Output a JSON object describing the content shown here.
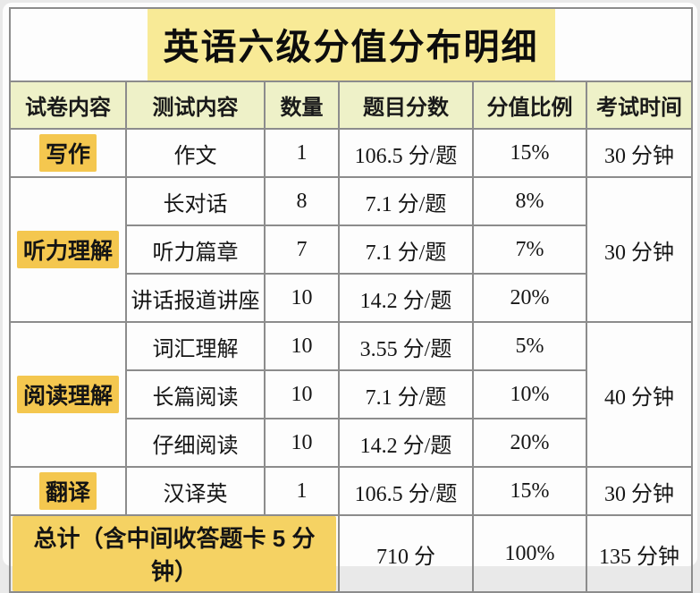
{
  "title": "英语六级分值分布明细",
  "colors": {
    "title_highlight": "#f8ea96",
    "header_bg": "#eef1c8",
    "category_highlight": "#f4c74f",
    "total_highlight": "#f5d263",
    "border": "#8c8c8c",
    "card_bg": "#fdfdfd",
    "outer_bg": "#e9e9e9"
  },
  "table": {
    "headers": [
      "试卷内容",
      "测试内容",
      "数量",
      "题目分数",
      "分值比例",
      "考试时间"
    ],
    "sections": [
      {
        "name": "写作",
        "time": "30 分钟"
      },
      {
        "name": "听力理解",
        "time": "30 分钟"
      },
      {
        "name": "阅读理解",
        "time": "40 分钟"
      },
      {
        "name": "翻译",
        "time": "30 分钟"
      }
    ],
    "rows": [
      {
        "section": "写作",
        "test": "作文",
        "count": "1",
        "score": "106.5 分/题",
        "ratio": "15%",
        "time": "30 分钟"
      },
      {
        "section": "听力理解",
        "test": "长对话",
        "count": "8",
        "score": "7.1 分/题",
        "ratio": "8%",
        "time": "30 分钟"
      },
      {
        "test": "听力篇章",
        "count": "7",
        "score": "7.1 分/题",
        "ratio": "7%"
      },
      {
        "test": "讲话报道讲座",
        "count": "10",
        "score": "14.2 分/题",
        "ratio": "20%"
      },
      {
        "section": "阅读理解",
        "test": "词汇理解",
        "count": "10",
        "score": "3.55 分/题",
        "ratio": "5%",
        "time": "40 分钟"
      },
      {
        "test": "长篇阅读",
        "count": "10",
        "score": "7.1 分/题",
        "ratio": "10%"
      },
      {
        "test": "仔细阅读",
        "count": "10",
        "score": "14.2 分/题",
        "ratio": "20%"
      },
      {
        "section": "翻译",
        "test": "汉译英",
        "count": "1",
        "score": "106.5 分/题",
        "ratio": "15%",
        "time": "30 分钟"
      }
    ],
    "total_row": {
      "label": "总计（含中间收答题卡 5 分钟）",
      "score": "710 分",
      "ratio": "100%",
      "time": "135 分钟"
    }
  }
}
